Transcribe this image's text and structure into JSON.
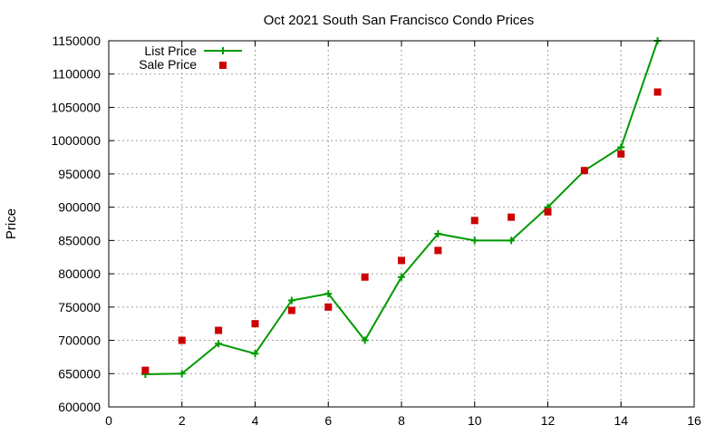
{
  "chart_data": {
    "type": "line",
    "title": "Oct 2021 South San Francisco Condo Prices",
    "xlabel": "",
    "ylabel": "Price",
    "xlim": [
      0,
      16
    ],
    "ylim": [
      600000,
      1150000
    ],
    "xticks": [
      0,
      2,
      4,
      6,
      8,
      10,
      12,
      14,
      16
    ],
    "yticks": [
      600000,
      650000,
      700000,
      750000,
      800000,
      850000,
      900000,
      950000,
      1000000,
      1050000,
      1100000,
      1150000
    ],
    "grid": true,
    "legend_position": "top-left",
    "series": [
      {
        "name": "List Price",
        "style": "line+cross",
        "color": "#009900",
        "x": [
          1,
          2,
          3,
          4,
          5,
          6,
          7,
          8,
          9,
          10,
          11,
          12,
          13,
          14,
          15
        ],
        "y": [
          649000,
          650000,
          695000,
          680000,
          760000,
          770000,
          700000,
          795000,
          860000,
          850000,
          850000,
          900000,
          955000,
          990000,
          1150000
        ]
      },
      {
        "name": "Sale Price",
        "style": "square",
        "color": "#cc0000",
        "x": [
          1,
          2,
          3,
          4,
          5,
          6,
          7,
          8,
          9,
          10,
          11,
          12,
          13,
          14,
          15
        ],
        "y": [
          655000,
          700000,
          715000,
          725000,
          745000,
          750000,
          795000,
          820000,
          835000,
          880000,
          885000,
          893000,
          955000,
          980000,
          1073000
        ]
      }
    ]
  }
}
